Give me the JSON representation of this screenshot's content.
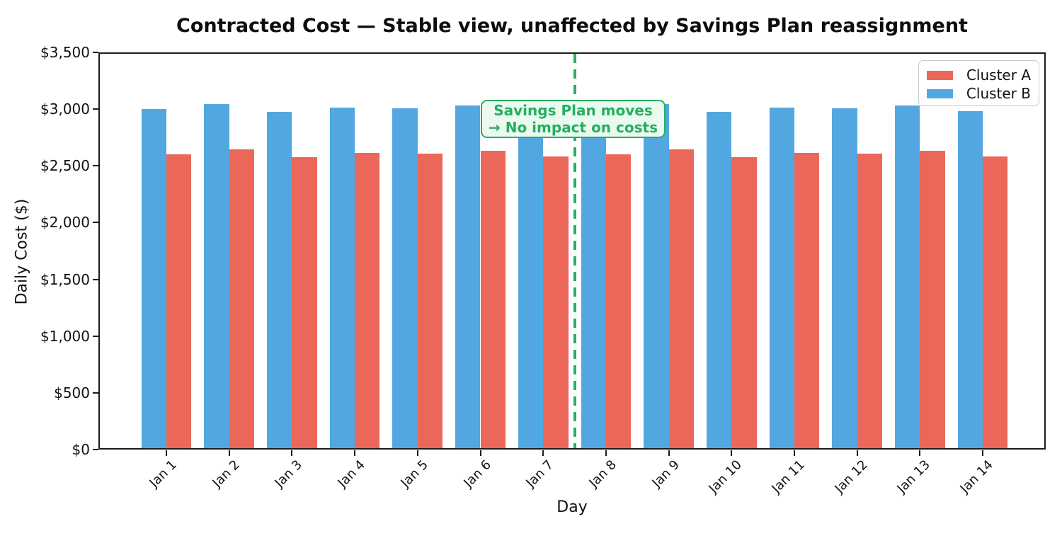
{
  "chart_data": {
    "type": "bar",
    "title": "Contracted Cost — Stable view, unaffected by Savings Plan reassignment",
    "xlabel": "Day",
    "ylabel": "Daily Cost ($)",
    "categories": [
      "Jan 1",
      "Jan 2",
      "Jan 3",
      "Jan 4",
      "Jan 5",
      "Jan 6",
      "Jan 7",
      "Jan 8",
      "Jan 9",
      "Jan 10",
      "Jan 11",
      "Jan 12",
      "Jan 13",
      "Jan 14"
    ],
    "series": [
      {
        "name": "Cluster A",
        "color": "#e74c3c",
        "values": [
          2600,
          2645,
          2575,
          2615,
          2610,
          2630,
          2585,
          2600,
          2645,
          2575,
          2615,
          2610,
          2630,
          2585
        ]
      },
      {
        "name": "Cluster B",
        "color": "#3498db",
        "values": [
          3000,
          3045,
          2975,
          3015,
          3010,
          3030,
          2985,
          3000,
          3045,
          2975,
          3015,
          3010,
          3030,
          2985
        ]
      }
    ],
    "bar_alpha": 0.85,
    "ylim": [
      0,
      3500
    ],
    "yticks": {
      "values": [
        0,
        500,
        1000,
        1500,
        2000,
        2500,
        3000,
        3500
      ],
      "labels": [
        "$0",
        "$500",
        "$1,000",
        "$1,500",
        "$2,000",
        "$2,500",
        "$3,000",
        "$3,500"
      ]
    },
    "grid": false,
    "legend": {
      "position": "upper right",
      "entries": [
        "Cluster A",
        "Cluster B"
      ]
    },
    "vline": {
      "between": [
        "Jan 7",
        "Jan 8"
      ],
      "x_index": 6.5,
      "color": "#27ae60",
      "style": "dashed"
    },
    "annotation": {
      "lines": [
        "Savings Plan moves",
        "→ No impact on costs"
      ],
      "text_color": "#27ae60",
      "border_color": "#27ae60",
      "fill_color": "#eafaf0"
    }
  }
}
